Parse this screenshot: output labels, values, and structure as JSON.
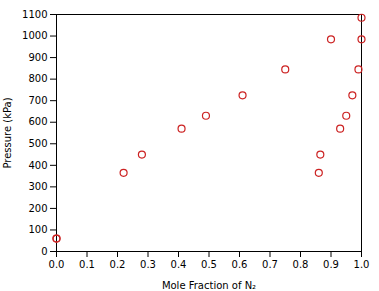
{
  "chart_data": {
    "type": "scatter",
    "x": [
      0.0,
      0.0,
      0.22,
      0.28,
      0.41,
      0.49,
      0.61,
      0.75,
      0.86,
      0.865,
      0.9,
      0.93,
      0.95,
      0.97,
      0.99,
      1.0,
      1.0
    ],
    "values": [
      60,
      60,
      365,
      450,
      570,
      630,
      725,
      845,
      365,
      450,
      985,
      570,
      630,
      725,
      845,
      985,
      1085
    ],
    "xlabel": "Mole Fraction of N₂",
    "ylabel": "Pressure (kPa)",
    "xlim": [
      0.0,
      1.0
    ],
    "ylim": [
      0,
      1100
    ],
    "xticks": [
      {
        "value": 0.0,
        "label": "0.0"
      },
      0.1,
      0.2,
      0.3,
      0.4,
      0.5,
      0.6,
      0.7,
      0.8,
      0.9,
      {
        "value": 1.0,
        "label": "1.0"
      }
    ],
    "yticks": [
      0,
      100,
      200,
      300,
      400,
      500,
      600,
      700,
      800,
      900,
      1000,
      1100
    ],
    "color": "#cc2222",
    "marker": "o",
    "grid": false
  }
}
